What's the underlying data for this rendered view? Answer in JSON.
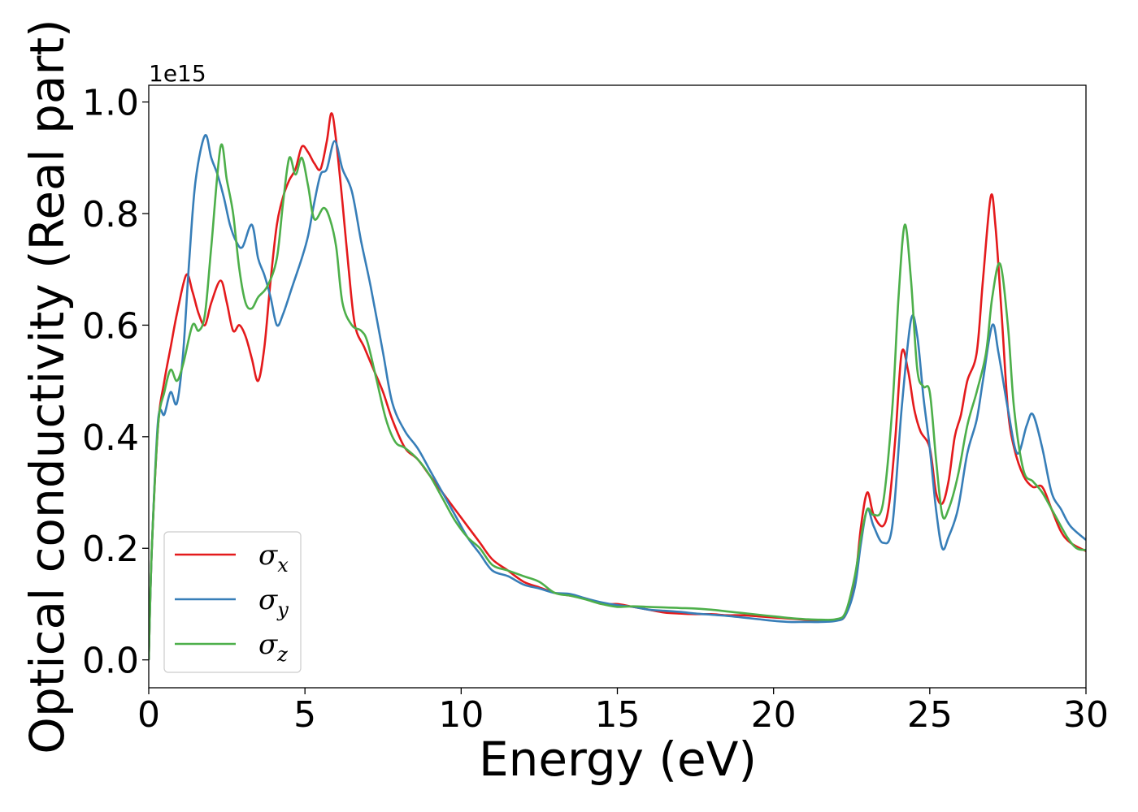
{
  "chart_data": {
    "type": "line",
    "xlabel": "Energy (eV)",
    "ylabel": "Optical conductivity (Real part)",
    "y_offset_label": "1e15",
    "xlim": [
      0,
      30
    ],
    "ylim": [
      -0.05,
      1.03
    ],
    "xticks": [
      0,
      5,
      10,
      15,
      20,
      25,
      30
    ],
    "xtick_labels": [
      "0",
      "5",
      "10",
      "15",
      "20",
      "25",
      "30"
    ],
    "yticks": [
      0.0,
      0.2,
      0.4,
      0.6,
      0.8,
      1.0
    ],
    "ytick_labels": [
      "0.0",
      "0.2",
      "0.4",
      "0.6",
      "0.8",
      "1.0"
    ],
    "grid": false,
    "legend_position": "lower-left",
    "series": [
      {
        "name": "σx",
        "legend_main": "σ",
        "legend_sub": "x",
        "color": "#e41a1c",
        "points": [
          [
            0,
            0
          ],
          [
            0.1,
            0.2
          ],
          [
            0.3,
            0.42
          ],
          [
            0.5,
            0.5
          ],
          [
            0.7,
            0.56
          ],
          [
            0.9,
            0.62
          ],
          [
            1.2,
            0.69
          ],
          [
            1.4,
            0.66
          ],
          [
            1.6,
            0.62
          ],
          [
            1.8,
            0.6
          ],
          [
            2.0,
            0.64
          ],
          [
            2.3,
            0.68
          ],
          [
            2.5,
            0.64
          ],
          [
            2.7,
            0.59
          ],
          [
            2.9,
            0.6
          ],
          [
            3.1,
            0.58
          ],
          [
            3.3,
            0.54
          ],
          [
            3.5,
            0.5
          ],
          [
            3.7,
            0.56
          ],
          [
            3.9,
            0.68
          ],
          [
            4.1,
            0.78
          ],
          [
            4.3,
            0.83
          ],
          [
            4.5,
            0.86
          ],
          [
            4.7,
            0.88
          ],
          [
            4.9,
            0.92
          ],
          [
            5.1,
            0.91
          ],
          [
            5.3,
            0.89
          ],
          [
            5.5,
            0.88
          ],
          [
            5.7,
            0.93
          ],
          [
            5.85,
            0.98
          ],
          [
            6.0,
            0.93
          ],
          [
            6.2,
            0.82
          ],
          [
            6.4,
            0.7
          ],
          [
            6.6,
            0.6
          ],
          [
            6.9,
            0.56
          ],
          [
            7.2,
            0.52
          ],
          [
            7.5,
            0.48
          ],
          [
            7.8,
            0.43
          ],
          [
            8.2,
            0.38
          ],
          [
            8.6,
            0.36
          ],
          [
            9.0,
            0.33
          ],
          [
            9.4,
            0.3
          ],
          [
            9.8,
            0.27
          ],
          [
            10.2,
            0.24
          ],
          [
            10.6,
            0.21
          ],
          [
            11.0,
            0.18
          ],
          [
            11.5,
            0.16
          ],
          [
            12.0,
            0.14
          ],
          [
            12.5,
            0.13
          ],
          [
            13.0,
            0.12
          ],
          [
            13.5,
            0.115
          ],
          [
            14.0,
            0.11
          ],
          [
            14.5,
            0.1
          ],
          [
            15.0,
            0.1
          ],
          [
            15.5,
            0.095
          ],
          [
            16.0,
            0.09
          ],
          [
            16.5,
            0.085
          ],
          [
            17.0,
            0.083
          ],
          [
            17.5,
            0.082
          ],
          [
            18.0,
            0.082
          ],
          [
            18.5,
            0.08
          ],
          [
            19.0,
            0.08
          ],
          [
            19.5,
            0.078
          ],
          [
            20.0,
            0.076
          ],
          [
            20.5,
            0.074
          ],
          [
            21.0,
            0.072
          ],
          [
            21.5,
            0.07
          ],
          [
            22.0,
            0.072
          ],
          [
            22.3,
            0.08
          ],
          [
            22.6,
            0.14
          ],
          [
            22.8,
            0.24
          ],
          [
            23.0,
            0.3
          ],
          [
            23.2,
            0.26
          ],
          [
            23.5,
            0.24
          ],
          [
            23.7,
            0.28
          ],
          [
            23.9,
            0.4
          ],
          [
            24.1,
            0.55
          ],
          [
            24.3,
            0.52
          ],
          [
            24.5,
            0.45
          ],
          [
            24.7,
            0.41
          ],
          [
            25.0,
            0.38
          ],
          [
            25.2,
            0.3
          ],
          [
            25.4,
            0.28
          ],
          [
            25.6,
            0.32
          ],
          [
            25.8,
            0.4
          ],
          [
            26.0,
            0.44
          ],
          [
            26.2,
            0.5
          ],
          [
            26.5,
            0.55
          ],
          [
            26.7,
            0.68
          ],
          [
            26.95,
            0.83
          ],
          [
            27.1,
            0.78
          ],
          [
            27.3,
            0.62
          ],
          [
            27.5,
            0.45
          ],
          [
            27.7,
            0.38
          ],
          [
            28.0,
            0.33
          ],
          [
            28.3,
            0.31
          ],
          [
            28.6,
            0.31
          ],
          [
            28.9,
            0.27
          ],
          [
            29.2,
            0.23
          ],
          [
            29.5,
            0.21
          ],
          [
            30.0,
            0.195
          ]
        ]
      },
      {
        "name": "σy",
        "legend_main": "σ",
        "legend_sub": "y",
        "color": "#377eb8",
        "points": [
          [
            0,
            0
          ],
          [
            0.1,
            0.2
          ],
          [
            0.3,
            0.43
          ],
          [
            0.5,
            0.44
          ],
          [
            0.7,
            0.48
          ],
          [
            0.9,
            0.46
          ],
          [
            1.1,
            0.55
          ],
          [
            1.3,
            0.72
          ],
          [
            1.5,
            0.86
          ],
          [
            1.8,
            0.94
          ],
          [
            2.0,
            0.9
          ],
          [
            2.2,
            0.87
          ],
          [
            2.4,
            0.83
          ],
          [
            2.6,
            0.78
          ],
          [
            2.8,
            0.75
          ],
          [
            3.0,
            0.74
          ],
          [
            3.3,
            0.78
          ],
          [
            3.5,
            0.72
          ],
          [
            3.7,
            0.69
          ],
          [
            3.9,
            0.65
          ],
          [
            4.1,
            0.6
          ],
          [
            4.3,
            0.62
          ],
          [
            4.6,
            0.67
          ],
          [
            4.9,
            0.72
          ],
          [
            5.1,
            0.76
          ],
          [
            5.3,
            0.82
          ],
          [
            5.5,
            0.87
          ],
          [
            5.7,
            0.88
          ],
          [
            5.95,
            0.93
          ],
          [
            6.2,
            0.88
          ],
          [
            6.5,
            0.84
          ],
          [
            6.8,
            0.75
          ],
          [
            7.1,
            0.67
          ],
          [
            7.5,
            0.55
          ],
          [
            7.8,
            0.46
          ],
          [
            8.2,
            0.41
          ],
          [
            8.6,
            0.38
          ],
          [
            9.0,
            0.34
          ],
          [
            9.4,
            0.3
          ],
          [
            9.8,
            0.26
          ],
          [
            10.2,
            0.22
          ],
          [
            10.6,
            0.19
          ],
          [
            11.0,
            0.16
          ],
          [
            11.5,
            0.15
          ],
          [
            12.0,
            0.135
          ],
          [
            12.5,
            0.128
          ],
          [
            13.0,
            0.12
          ],
          [
            13.5,
            0.118
          ],
          [
            14.0,
            0.11
          ],
          [
            14.5,
            0.103
          ],
          [
            15.0,
            0.098
          ],
          [
            15.5,
            0.095
          ],
          [
            16.0,
            0.09
          ],
          [
            16.5,
            0.088
          ],
          [
            17.0,
            0.086
          ],
          [
            17.5,
            0.083
          ],
          [
            18.0,
            0.081
          ],
          [
            18.5,
            0.079
          ],
          [
            19.0,
            0.076
          ],
          [
            19.5,
            0.073
          ],
          [
            20.0,
            0.07
          ],
          [
            20.5,
            0.068
          ],
          [
            21.0,
            0.068
          ],
          [
            21.5,
            0.068
          ],
          [
            22.0,
            0.07
          ],
          [
            22.3,
            0.08
          ],
          [
            22.6,
            0.13
          ],
          [
            22.8,
            0.21
          ],
          [
            23.0,
            0.27
          ],
          [
            23.2,
            0.24
          ],
          [
            23.5,
            0.21
          ],
          [
            23.8,
            0.24
          ],
          [
            24.1,
            0.45
          ],
          [
            24.4,
            0.61
          ],
          [
            24.6,
            0.58
          ],
          [
            24.8,
            0.47
          ],
          [
            25.0,
            0.38
          ],
          [
            25.2,
            0.27
          ],
          [
            25.4,
            0.2
          ],
          [
            25.6,
            0.22
          ],
          [
            25.9,
            0.27
          ],
          [
            26.2,
            0.37
          ],
          [
            26.5,
            0.43
          ],
          [
            26.7,
            0.5
          ],
          [
            27.0,
            0.6
          ],
          [
            27.2,
            0.55
          ],
          [
            27.5,
            0.45
          ],
          [
            27.8,
            0.37
          ],
          [
            28.1,
            0.42
          ],
          [
            28.3,
            0.44
          ],
          [
            28.6,
            0.38
          ],
          [
            28.9,
            0.3
          ],
          [
            29.2,
            0.27
          ],
          [
            29.5,
            0.24
          ],
          [
            30.0,
            0.215
          ]
        ]
      },
      {
        "name": "σz",
        "legend_main": "σ",
        "legend_sub": "z",
        "color": "#4daf4a",
        "points": [
          [
            0,
            0
          ],
          [
            0.1,
            0.2
          ],
          [
            0.3,
            0.42
          ],
          [
            0.5,
            0.48
          ],
          [
            0.7,
            0.52
          ],
          [
            0.9,
            0.5
          ],
          [
            1.1,
            0.53
          ],
          [
            1.4,
            0.6
          ],
          [
            1.6,
            0.59
          ],
          [
            1.8,
            0.62
          ],
          [
            2.0,
            0.74
          ],
          [
            2.3,
            0.92
          ],
          [
            2.5,
            0.86
          ],
          [
            2.7,
            0.8
          ],
          [
            2.9,
            0.7
          ],
          [
            3.1,
            0.64
          ],
          [
            3.3,
            0.63
          ],
          [
            3.5,
            0.65
          ],
          [
            3.8,
            0.67
          ],
          [
            4.1,
            0.72
          ],
          [
            4.3,
            0.82
          ],
          [
            4.5,
            0.9
          ],
          [
            4.7,
            0.87
          ],
          [
            4.9,
            0.9
          ],
          [
            5.1,
            0.85
          ],
          [
            5.3,
            0.79
          ],
          [
            5.6,
            0.81
          ],
          [
            5.8,
            0.79
          ],
          [
            6.0,
            0.74
          ],
          [
            6.2,
            0.64
          ],
          [
            6.5,
            0.6
          ],
          [
            6.8,
            0.59
          ],
          [
            7.0,
            0.57
          ],
          [
            7.3,
            0.5
          ],
          [
            7.6,
            0.43
          ],
          [
            7.9,
            0.39
          ],
          [
            8.2,
            0.38
          ],
          [
            8.6,
            0.36
          ],
          [
            9.0,
            0.33
          ],
          [
            9.4,
            0.29
          ],
          [
            9.8,
            0.25
          ],
          [
            10.2,
            0.22
          ],
          [
            10.6,
            0.2
          ],
          [
            11.0,
            0.17
          ],
          [
            11.5,
            0.16
          ],
          [
            12.0,
            0.15
          ],
          [
            12.5,
            0.14
          ],
          [
            13.0,
            0.12
          ],
          [
            13.5,
            0.115
          ],
          [
            14.0,
            0.108
          ],
          [
            14.5,
            0.1
          ],
          [
            15.0,
            0.095
          ],
          [
            15.5,
            0.096
          ],
          [
            16.0,
            0.095
          ],
          [
            16.5,
            0.094
          ],
          [
            17.0,
            0.093
          ],
          [
            17.5,
            0.092
          ],
          [
            18.0,
            0.09
          ],
          [
            18.5,
            0.087
          ],
          [
            19.0,
            0.084
          ],
          [
            19.5,
            0.081
          ],
          [
            20.0,
            0.078
          ],
          [
            20.5,
            0.075
          ],
          [
            21.0,
            0.073
          ],
          [
            21.5,
            0.072
          ],
          [
            22.0,
            0.073
          ],
          [
            22.3,
            0.085
          ],
          [
            22.6,
            0.15
          ],
          [
            22.8,
            0.22
          ],
          [
            23.0,
            0.27
          ],
          [
            23.2,
            0.26
          ],
          [
            23.5,
            0.28
          ],
          [
            23.8,
            0.45
          ],
          [
            24.0,
            0.65
          ],
          [
            24.2,
            0.78
          ],
          [
            24.4,
            0.68
          ],
          [
            24.6,
            0.52
          ],
          [
            24.8,
            0.49
          ],
          [
            25.0,
            0.48
          ],
          [
            25.2,
            0.36
          ],
          [
            25.4,
            0.26
          ],
          [
            25.6,
            0.27
          ],
          [
            25.9,
            0.33
          ],
          [
            26.2,
            0.42
          ],
          [
            26.5,
            0.48
          ],
          [
            26.8,
            0.55
          ],
          [
            27.0,
            0.65
          ],
          [
            27.25,
            0.71
          ],
          [
            27.5,
            0.6
          ],
          [
            27.7,
            0.45
          ],
          [
            28.0,
            0.34
          ],
          [
            28.3,
            0.32
          ],
          [
            28.6,
            0.3
          ],
          [
            29.0,
            0.26
          ],
          [
            29.4,
            0.22
          ],
          [
            29.7,
            0.2
          ],
          [
            30.0,
            0.197
          ]
        ]
      }
    ]
  }
}
